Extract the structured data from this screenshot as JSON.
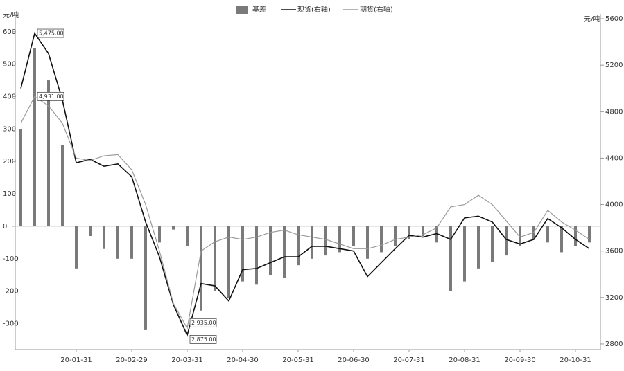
{
  "chart_data": {
    "type": "bar-line",
    "y_label": "元/吨",
    "y2_label": "元/吨",
    "categories": [
      null,
      null,
      null,
      null,
      "20-01-31",
      null,
      null,
      null,
      "20-02-29",
      null,
      null,
      null,
      "20-03-31",
      null,
      null,
      null,
      "20-04-30",
      null,
      null,
      null,
      "20-05-31",
      null,
      null,
      null,
      "20-06-30",
      null,
      null,
      null,
      "20-07-31",
      null,
      null,
      null,
      "20-08-31",
      null,
      null,
      null,
      "20-09-30",
      null,
      null,
      null,
      "20-10-31",
      null
    ],
    "series": [
      {
        "name": "基差",
        "type": "bar",
        "color": "#7a7a7a",
        "values": [
          300,
          550,
          450,
          250,
          -130,
          -30,
          -70,
          -100,
          -100,
          -320,
          -50,
          -10,
          -60,
          -260,
          -200,
          -220,
          -170,
          -180,
          -150,
          -160,
          -120,
          -100,
          -90,
          -80,
          -60,
          -100,
          -80,
          -60,
          -40,
          -30,
          -50,
          -200,
          -170,
          -130,
          -110,
          -90,
          -60,
          -40,
          -50,
          -80,
          -60,
          -50
        ]
      },
      {
        "name": "现货(右轴)",
        "type": "line",
        "axis": "y2",
        "color": "#111111",
        "values": [
          5000,
          5475,
          5300,
          4900,
          4360,
          4390,
          4330,
          4350,
          4240,
          3850,
          3550,
          3140,
          2875,
          3320,
          3300,
          3170,
          3440,
          3450,
          3500,
          3550,
          3550,
          3640,
          3640,
          3620,
          3600,
          3380,
          3500,
          3620,
          3735,
          3720,
          3750,
          3700,
          3885,
          3900,
          3850,
          3700,
          3660,
          3700,
          3880,
          3800,
          3700,
          3620
        ]
      },
      {
        "name": "期货(右轴)",
        "type": "line",
        "axis": "y2",
        "color": "#9a9a9a",
        "values": [
          4700,
          4931,
          4850,
          4700,
          4400,
          4380,
          4420,
          4430,
          4300,
          4000,
          3600,
          3150,
          2935,
          3600,
          3680,
          3720,
          3700,
          3720,
          3760,
          3780,
          3740,
          3720,
          3700,
          3660,
          3620,
          3620,
          3650,
          3700,
          3720,
          3740,
          3800,
          3980,
          4000,
          4080,
          4000,
          3860,
          3720,
          3760,
          3950,
          3850,
          3780,
          3700
        ]
      }
    ],
    "annotations": [
      "5,475.00",
      "4,931.00",
      "2,935.00",
      "2,875.00"
    ],
    "ylim": [
      -380,
      655
    ],
    "yticks": [
      -300,
      -200,
      -100,
      0,
      100,
      200,
      300,
      400,
      500,
      600
    ],
    "y2lim": [
      2752,
      5642
    ],
    "y2ticks": [
      2800,
      3200,
      3600,
      4000,
      4400,
      4800,
      5200,
      5600
    ]
  }
}
